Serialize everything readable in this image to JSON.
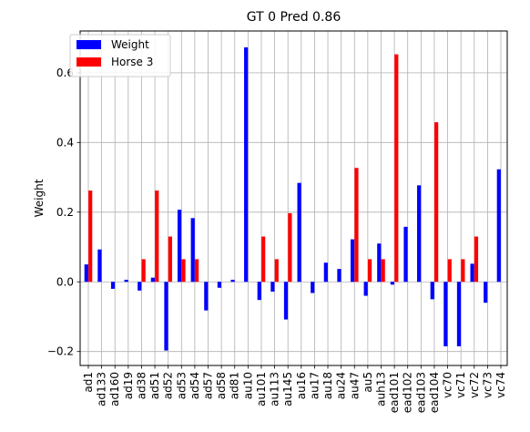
{
  "chart_data": {
    "type": "bar",
    "title": "GT 0 Pred 0.86",
    "xlabel": "",
    "ylabel": "Weight",
    "ylim": [
      -0.24,
      0.72
    ],
    "yticks": [
      -0.2,
      0.0,
      0.2,
      0.4,
      0.6
    ],
    "ytick_labels": [
      "−0.2",
      "0.0",
      "0.2",
      "0.4",
      "0.6"
    ],
    "grid": true,
    "legend_position": "top-left",
    "categories": [
      "ad1",
      "ad133",
      "ad160",
      "ad19",
      "ad38",
      "ad51",
      "ad52",
      "ad53",
      "ad54",
      "ad57",
      "ad58",
      "ad81",
      "au10",
      "au101",
      "au113",
      "au145",
      "au16",
      "au17",
      "au18",
      "au24",
      "au47",
      "au5",
      "auh13",
      "ead101",
      "ead102",
      "ead103",
      "ead104",
      "vc70",
      "vc71",
      "vc72",
      "vc73",
      "vc74"
    ],
    "series": [
      {
        "name": "Weight",
        "color": "#0000ff",
        "values": [
          0.05,
          0.093,
          -0.02,
          0.006,
          -0.025,
          0.012,
          -0.197,
          0.207,
          0.183,
          -0.082,
          -0.017,
          0.006,
          0.673,
          -0.052,
          -0.028,
          -0.108,
          0.284,
          -0.032,
          0.055,
          0.037,
          0.122,
          -0.04,
          0.11,
          -0.008,
          0.158,
          0.277,
          -0.05,
          -0.185,
          -0.185,
          0.052,
          -0.06,
          0.323
        ]
      },
      {
        "name": "Horse 3",
        "color": "#ff0000",
        "values": [
          0.262,
          0,
          0,
          0,
          0.065,
          0.262,
          0.13,
          0.065,
          0.065,
          0,
          0,
          0,
          0,
          0.13,
          0.065,
          0.197,
          0,
          0,
          0,
          0,
          0.327,
          0.065,
          0.065,
          0.653,
          0,
          0,
          0.458,
          0.065,
          0.065,
          0.13,
          0,
          0
        ]
      }
    ]
  }
}
